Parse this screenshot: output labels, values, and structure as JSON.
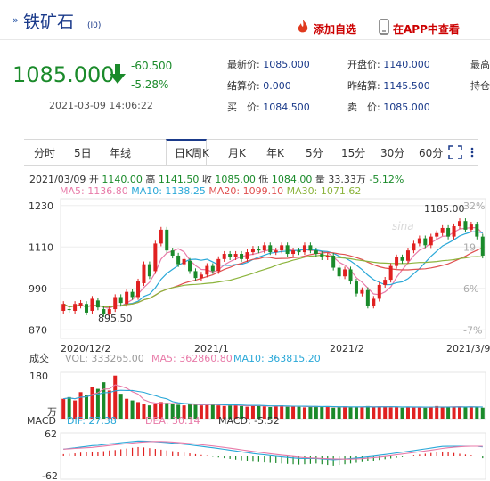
{
  "header": {
    "title_mark": "»",
    "title": "铁矿石",
    "code": "(I0)",
    "add_favorite": "添加自选",
    "app_view": "在APP中查看"
  },
  "quote": {
    "price": "1085.000",
    "change": "-60.500",
    "change_pct": "-5.28%",
    "datetime": "2021-03-09 14:06:22",
    "fields": [
      {
        "label": "最新价:",
        "value": "1085.000"
      },
      {
        "label": "结算价:",
        "value": "0.000"
      },
      {
        "label": "买　价:",
        "value": "1084.500"
      },
      {
        "label": "开盘价:",
        "value": "1140.000"
      },
      {
        "label": "昨结算:",
        "value": "1145.500"
      },
      {
        "label": "卖　价:",
        "value": "1085.000"
      },
      {
        "label": "最高",
        "value": ""
      },
      {
        "label": "持仓",
        "value": ""
      }
    ]
  },
  "tabs": [
    "分时",
    "5日",
    "年线",
    "日K",
    "周K",
    "月K",
    "年K",
    "5分",
    "15分",
    "30分",
    "60分"
  ],
  "info": {
    "row1": [
      {
        "t": "2021/03/09",
        "c": "#333"
      },
      {
        "t": " 开 ",
        "c": "#333"
      },
      {
        "t": "1140.00",
        "c": "#1a8a2a"
      },
      {
        "t": " 高 ",
        "c": "#333"
      },
      {
        "t": "1141.50",
        "c": "#1a8a2a"
      },
      {
        "t": " 收 ",
        "c": "#333"
      },
      {
        "t": "1085.00",
        "c": "#1a8a2a"
      },
      {
        "t": " 低 ",
        "c": "#333"
      },
      {
        "t": "1084.00",
        "c": "#1a8a2a"
      },
      {
        "t": " 量 ",
        "c": "#333"
      },
      {
        "t": "33.33万",
        "c": "#333"
      },
      {
        "t": " -5.12%",
        "c": "#1a8a2a"
      }
    ],
    "row2": [
      {
        "t": "MA5: 1136.80",
        "c": "#e87aa8"
      },
      {
        "t": "  MA10: 1138.25",
        "c": "#2aa8d8"
      },
      {
        "t": "  MA20: 1099.10",
        "c": "#e05050"
      },
      {
        "t": "  MA30: 1071.62",
        "c": "#8cb43c"
      }
    ]
  },
  "chart_data": {
    "type": "candlestick",
    "price_axis": {
      "ticks": [
        1230,
        1110,
        990,
        870
      ],
      "right_ticks": [
        "32%",
        "19",
        "6%",
        "-7%"
      ],
      "ylim": [
        845,
        1250
      ]
    },
    "date_ticks": [
      "2020/12/2",
      "2021/1",
      "2021/2",
      "2021/3/9"
    ],
    "annotations": {
      "high": "1185.00",
      "low": "895.50"
    },
    "candles": [
      [
        925,
        945
      ],
      [
        930,
        928
      ],
      [
        925,
        945
      ],
      [
        940,
        948
      ],
      [
        945,
        920
      ],
      [
        925,
        960
      ],
      [
        955,
        935
      ],
      [
        930,
        915
      ],
      [
        915,
        930
      ],
      [
        930,
        965
      ],
      [
        965,
        948
      ],
      [
        945,
        980
      ],
      [
        980,
        965
      ],
      [
        965,
        1010
      ],
      [
        1005,
        1060
      ],
      [
        1060,
        1025
      ],
      [
        1040,
        1120
      ],
      [
        1120,
        1160
      ],
      [
        1160,
        1100
      ],
      [
        1100,
        1085
      ],
      [
        1085,
        1060
      ],
      [
        1060,
        1075
      ],
      [
        1070,
        1040
      ],
      [
        1040,
        1020
      ],
      [
        1020,
        1030
      ],
      [
        1030,
        1055
      ],
      [
        1055,
        1040
      ],
      [
        1040,
        1075
      ],
      [
        1075,
        1090
      ],
      [
        1090,
        1080
      ],
      [
        1080,
        1090
      ],
      [
        1090,
        1075
      ],
      [
        1075,
        1095
      ],
      [
        1095,
        1105
      ],
      [
        1105,
        1100
      ],
      [
        1100,
        1115
      ],
      [
        1115,
        1095
      ],
      [
        1095,
        1100
      ],
      [
        1100,
        1115
      ],
      [
        1115,
        1090
      ],
      [
        1090,
        1100
      ],
      [
        1100,
        1095
      ],
      [
        1095,
        1115
      ],
      [
        1115,
        1100
      ],
      [
        1100,
        1090
      ],
      [
        1090,
        1080
      ],
      [
        1080,
        1085
      ],
      [
        1085,
        1050
      ],
      [
        1050,
        1025
      ],
      [
        1025,
        1045
      ],
      [
        1045,
        1010
      ],
      [
        1010,
        975
      ],
      [
        975,
        985
      ],
      [
        985,
        940
      ],
      [
        940,
        960
      ],
      [
        960,
        1000
      ],
      [
        1000,
        1015
      ],
      [
        1015,
        1055
      ],
      [
        1055,
        1080
      ],
      [
        1080,
        1070
      ],
      [
        1070,
        1100
      ],
      [
        1100,
        1120
      ],
      [
        1120,
        1135
      ],
      [
        1135,
        1115
      ],
      [
        1115,
        1140
      ],
      [
        1140,
        1150
      ],
      [
        1150,
        1165
      ],
      [
        1165,
        1140
      ],
      [
        1140,
        1170
      ],
      [
        1170,
        1185
      ],
      [
        1185,
        1160
      ],
      [
        1160,
        1175
      ],
      [
        1175,
        1140
      ],
      [
        1140,
        1085
      ]
    ],
    "volume_panel": {
      "label": "成交",
      "vol": "VOL: 333265.00",
      "ma5": "MA5: 362860.80",
      "ma10": "MA10: 363815.20",
      "top_tick": "180",
      "bottom_tick": "万",
      "values": [
        60,
        65,
        55,
        80,
        70,
        95,
        90,
        110,
        85,
        130,
        75,
        60,
        55,
        50,
        45,
        40,
        45,
        50,
        48,
        45,
        42,
        40,
        44,
        43,
        40,
        42,
        45,
        40,
        38,
        40,
        42,
        38,
        36,
        39,
        41,
        37,
        35,
        38,
        40,
        36,
        38,
        36,
        34,
        37,
        38,
        35,
        36,
        33,
        35,
        37,
        34,
        36,
        35,
        38,
        35,
        37,
        36,
        34,
        35,
        33,
        36,
        34,
        35,
        33,
        36,
        38,
        34,
        35,
        36,
        37,
        35,
        36,
        34,
        33
      ]
    },
    "macd_panel": {
      "label": "MACD",
      "dif": "DIF: 27.38",
      "dea": "DEA: 30.14",
      "macd": "MACD: -5.52",
      "top_tick": "62",
      "bottom_tick": "-62",
      "values": [
        5,
        6,
        7,
        9,
        10,
        12,
        11,
        13,
        15,
        16,
        18,
        20,
        22,
        24,
        23,
        21,
        19,
        17,
        15,
        13,
        11,
        9,
        7,
        5,
        3,
        1,
        -1,
        -3,
        -5,
        -7,
        -9,
        -11,
        -13,
        -15,
        -16,
        -17,
        -18,
        -19,
        -20,
        -21,
        -22,
        -23,
        -22,
        -21,
        -20,
        -22,
        -24,
        -26,
        -24,
        -22,
        -20,
        -18,
        -16,
        -14,
        -12,
        -10,
        -8,
        -6,
        -4,
        -2,
        0,
        2,
        4,
        6,
        8,
        10,
        12,
        10,
        8,
        6,
        4,
        2,
        0,
        -5
      ]
    }
  }
}
